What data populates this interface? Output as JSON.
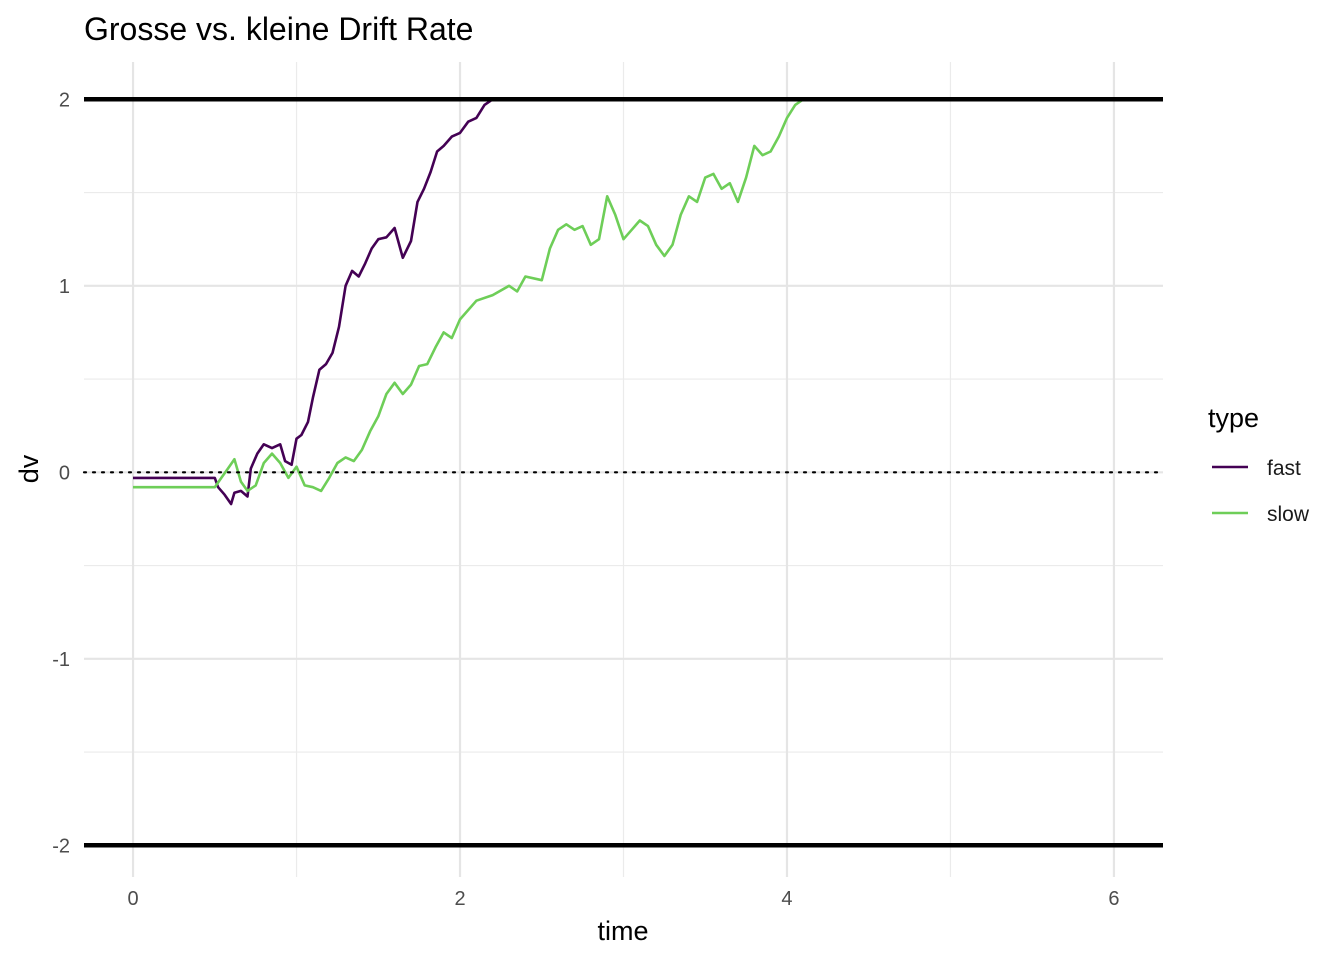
{
  "chart_data": {
    "type": "line",
    "title": "Grosse vs. kleine Drift Rate",
    "xlabel": "time",
    "ylabel": "dv",
    "xlim": [
      -0.3,
      6.3
    ],
    "ylim": [
      -2.17,
      2.2
    ],
    "x_ticks": [
      0,
      2,
      4,
      6
    ],
    "x_tick_labels": [
      "0",
      "2",
      "4",
      "6"
    ],
    "y_ticks": [
      -2,
      -1,
      0,
      1,
      2
    ],
    "y_tick_labels": [
      "-2",
      "-1",
      "0",
      "1",
      "2"
    ],
    "grid": true,
    "boundaries": [
      2,
      -2
    ],
    "reference_line": 0,
    "legend": {
      "title": "type",
      "position": "right"
    },
    "series": [
      {
        "name": "fast",
        "color": "#440154",
        "x": [
          0,
          0.5,
          0.52,
          0.56,
          0.6,
          0.62,
          0.66,
          0.7,
          0.72,
          0.76,
          0.8,
          0.85,
          0.9,
          0.93,
          0.97,
          1.0,
          1.03,
          1.07,
          1.1,
          1.14,
          1.18,
          1.22,
          1.26,
          1.3,
          1.34,
          1.38,
          1.42,
          1.46,
          1.5,
          1.55,
          1.6,
          1.65,
          1.7,
          1.74,
          1.78,
          1.82,
          1.86,
          1.9,
          1.95,
          2.0,
          2.05,
          2.1,
          2.15,
          2.2
        ],
        "values": [
          -0.03,
          -0.03,
          -0.08,
          -0.12,
          -0.17,
          -0.11,
          -0.1,
          -0.13,
          0.02,
          0.1,
          0.15,
          0.13,
          0.15,
          0.06,
          0.04,
          0.18,
          0.2,
          0.27,
          0.4,
          0.55,
          0.58,
          0.64,
          0.78,
          1.0,
          1.08,
          1.05,
          1.12,
          1.2,
          1.25,
          1.26,
          1.31,
          1.15,
          1.24,
          1.45,
          1.52,
          1.61,
          1.72,
          1.75,
          1.8,
          1.82,
          1.88,
          1.9,
          1.97,
          2.0
        ]
      },
      {
        "name": "slow",
        "color": "#6ece58",
        "x": [
          0,
          0.5,
          0.54,
          0.58,
          0.62,
          0.66,
          0.7,
          0.75,
          0.8,
          0.85,
          0.9,
          0.95,
          1.0,
          1.05,
          1.1,
          1.15,
          1.2,
          1.25,
          1.3,
          1.35,
          1.4,
          1.45,
          1.5,
          1.55,
          1.6,
          1.65,
          1.7,
          1.75,
          1.8,
          1.85,
          1.9,
          1.95,
          2.0,
          2.1,
          2.2,
          2.3,
          2.35,
          2.4,
          2.5,
          2.55,
          2.6,
          2.65,
          2.7,
          2.75,
          2.8,
          2.85,
          2.9,
          2.95,
          3.0,
          3.05,
          3.1,
          3.15,
          3.2,
          3.25,
          3.3,
          3.35,
          3.4,
          3.45,
          3.5,
          3.55,
          3.6,
          3.65,
          3.7,
          3.75,
          3.8,
          3.85,
          3.9,
          3.95,
          4.0,
          4.05,
          4.1,
          4.15,
          4.2
        ],
        "values": [
          -0.08,
          -0.08,
          -0.03,
          0.02,
          0.07,
          -0.05,
          -0.1,
          -0.07,
          0.05,
          0.1,
          0.05,
          -0.03,
          0.03,
          -0.07,
          -0.08,
          -0.1,
          -0.03,
          0.05,
          0.08,
          0.06,
          0.12,
          0.22,
          0.3,
          0.42,
          0.48,
          0.42,
          0.47,
          0.57,
          0.58,
          0.67,
          0.75,
          0.72,
          0.82,
          0.92,
          0.95,
          1.0,
          0.97,
          1.05,
          1.03,
          1.2,
          1.3,
          1.33,
          1.3,
          1.32,
          1.22,
          1.25,
          1.48,
          1.38,
          1.25,
          1.3,
          1.35,
          1.32,
          1.22,
          1.16,
          1.22,
          1.38,
          1.48,
          1.45,
          1.58,
          1.6,
          1.52,
          1.55,
          1.45,
          1.58,
          1.75,
          1.7,
          1.72,
          1.8,
          1.9,
          1.97,
          2.0,
          2.0,
          2.0
        ]
      }
    ]
  }
}
